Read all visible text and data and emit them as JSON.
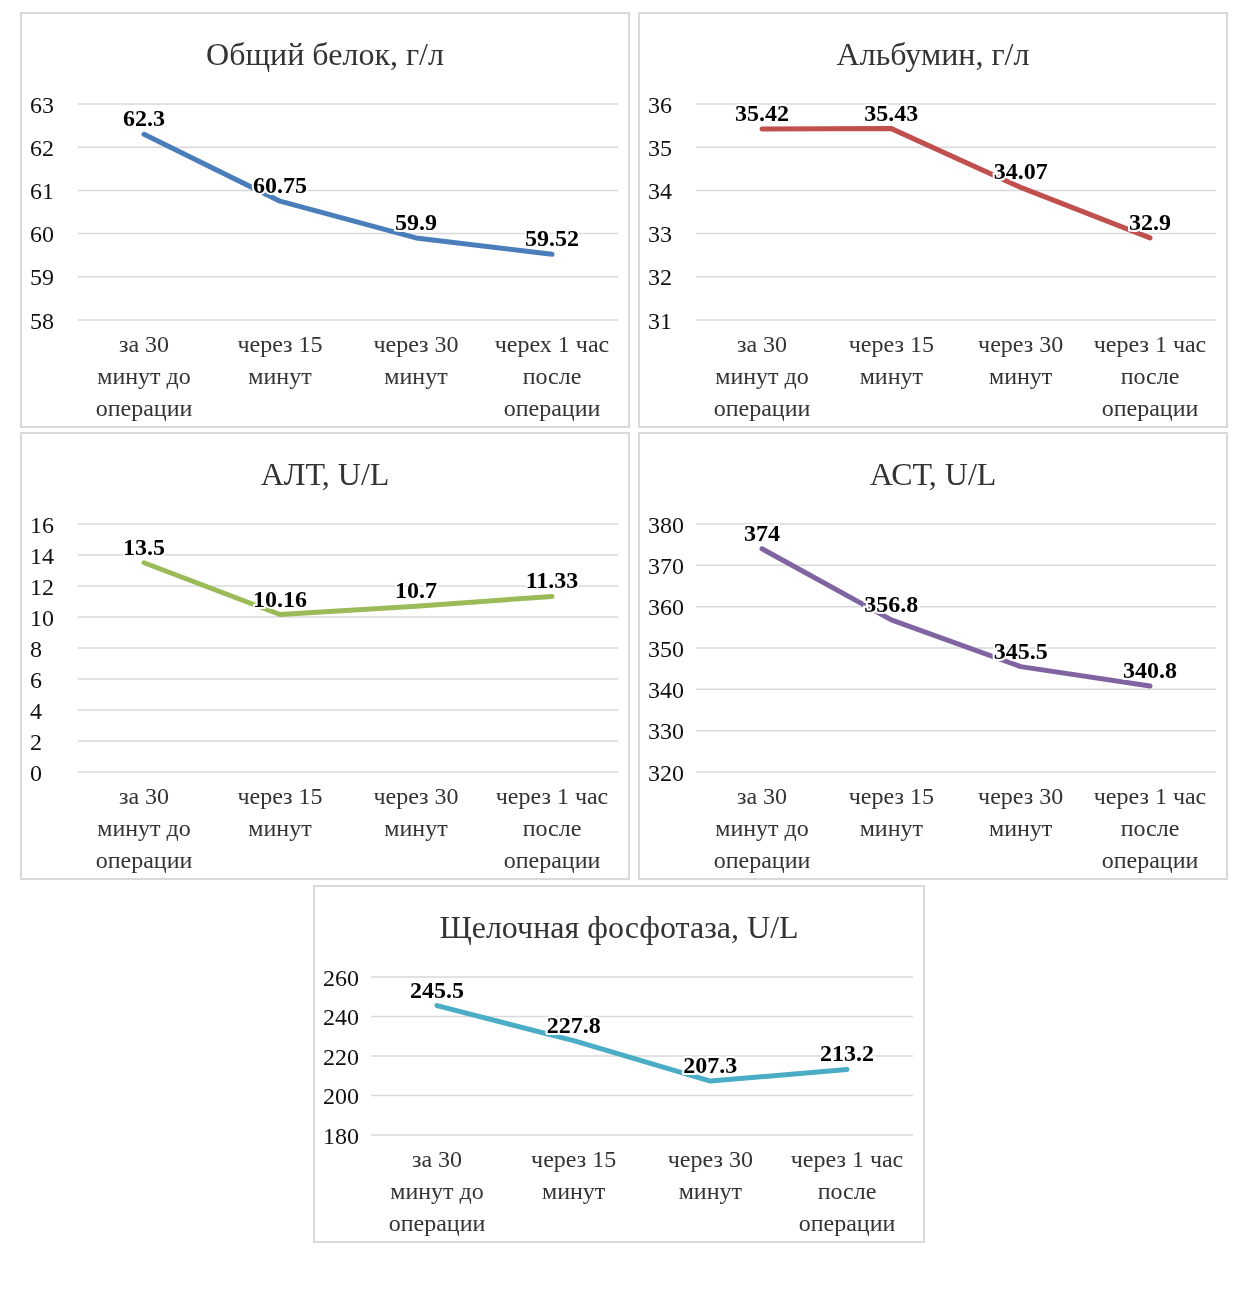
{
  "chart_data": [
    {
      "type": "line",
      "title": "Общий белок, г/л",
      "categories": [
        "за 30\nминут до\nоперации",
        "через 15\nминут",
        "через 30\nминут",
        "черех 1 час\nпосле\nоперации"
      ],
      "series": [
        {
          "color": "#4a7ebb",
          "values": [
            62.3,
            60.75,
            59.9,
            59.52
          ]
        }
      ],
      "ylim": [
        58,
        63
      ],
      "yticks": [
        58,
        59,
        60,
        61,
        62,
        63
      ],
      "grid": "y",
      "data_labels": true,
      "legend": false,
      "marker": "none"
    },
    {
      "type": "line",
      "title": "Альбумин, г/л",
      "categories": [
        "за 30\nминут до\nоперации",
        "через 15\nминут",
        "через 30\nминут",
        "через 1 час\nпосле\nоперации"
      ],
      "series": [
        {
          "color": "#c0504d",
          "values": [
            35.42,
            35.43,
            34.07,
            32.9
          ]
        }
      ],
      "ylim": [
        31,
        36
      ],
      "yticks": [
        31,
        32,
        33,
        34,
        35,
        36
      ],
      "grid": "y",
      "data_labels": true,
      "legend": false,
      "marker": "none"
    },
    {
      "type": "line",
      "title": "АЛТ, U/L",
      "categories": [
        "за 30\nминут до\nоперации",
        "через 15\nминут",
        "через 30\nминут",
        "через 1 час\nпосле\nоперации"
      ],
      "series": [
        {
          "color": "#9bbb59",
          "values": [
            13.5,
            10.16,
            10.7,
            11.33
          ]
        }
      ],
      "ylim": [
        0,
        16
      ],
      "yticks": [
        0,
        2,
        4,
        6,
        8,
        10,
        12,
        14,
        16
      ],
      "grid": "y",
      "data_labels": true,
      "legend": false,
      "marker": "none"
    },
    {
      "type": "line",
      "title": "АСТ, U/L",
      "categories": [
        "за 30\nминут до\nоперации",
        "через 15\nминут",
        "через 30\nминут",
        "через 1 час\nпосле\nоперации"
      ],
      "series": [
        {
          "color": "#8064a2",
          "values": [
            374,
            356.8,
            345.5,
            340.8
          ]
        }
      ],
      "ylim": [
        320,
        380
      ],
      "yticks": [
        320,
        330,
        340,
        350,
        360,
        370,
        380
      ],
      "grid": "y",
      "data_labels": true,
      "legend": false,
      "marker": "none"
    },
    {
      "type": "line",
      "title": "Щелочная фосфотаза, U/L",
      "categories": [
        "за 30\nминут до\nоперации",
        "через 15\nминут",
        "через 30\nминут",
        "через 1 час\nпосле\nоперации"
      ],
      "series": [
        {
          "color": "#4bacc6",
          "values": [
            245.5,
            227.8,
            207.3,
            213.2
          ]
        }
      ],
      "ylim": [
        180,
        260
      ],
      "yticks": [
        180,
        200,
        220,
        240,
        260
      ],
      "grid": "y",
      "data_labels": true,
      "legend": false,
      "marker": "none"
    }
  ]
}
